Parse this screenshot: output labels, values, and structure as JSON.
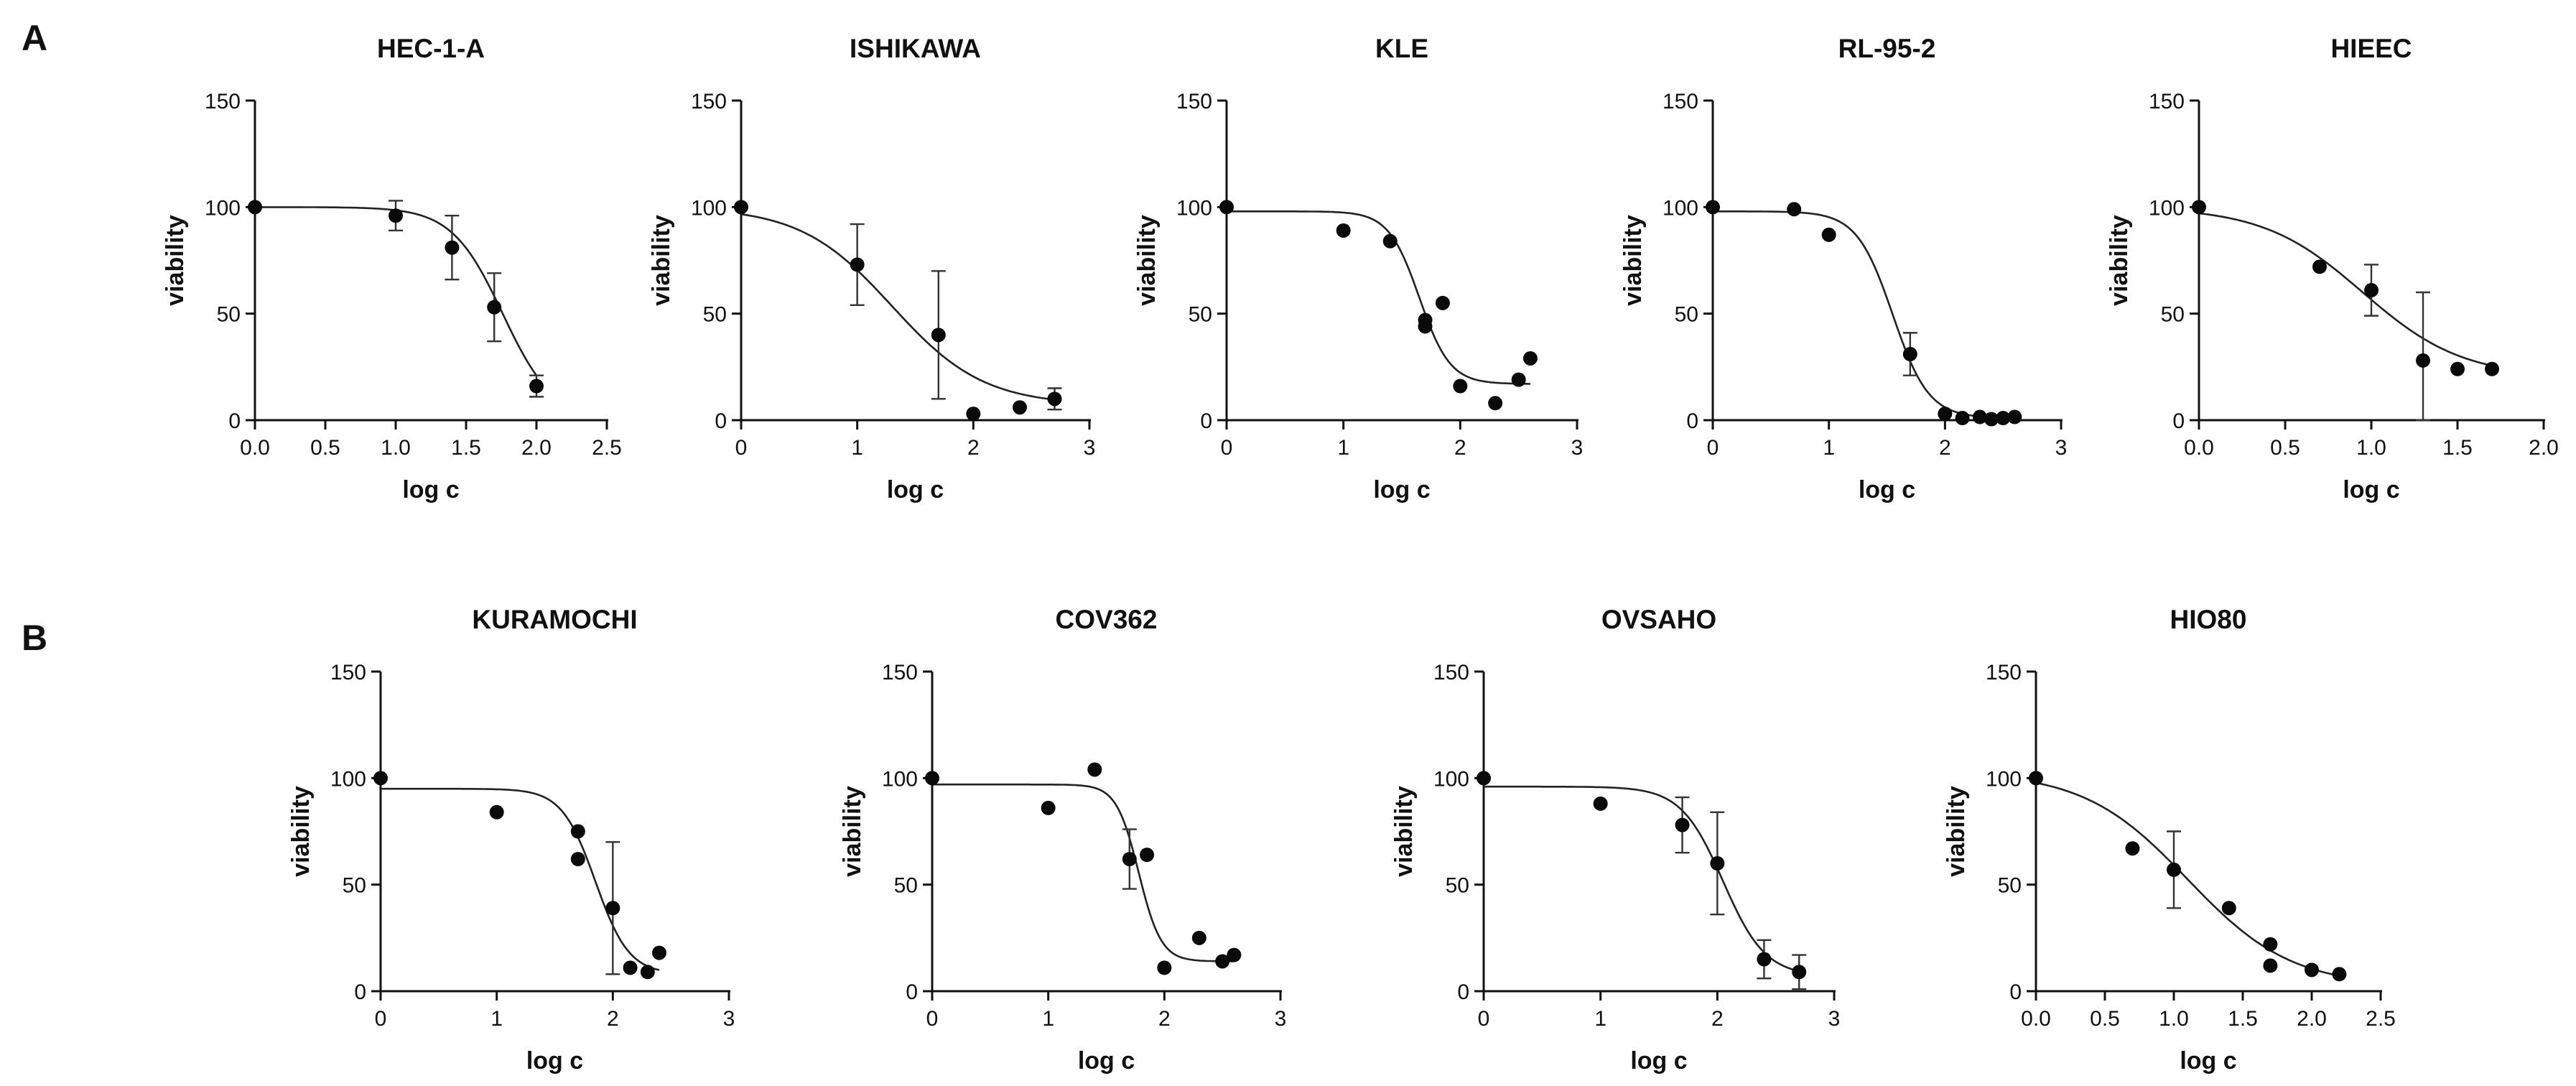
{
  "panel_labels": [
    "A",
    "B"
  ],
  "chart_data": [
    {
      "type": "scatter",
      "panel": "A",
      "title": "HEC-1-A",
      "xlabel": "log c",
      "ylabel": "viability",
      "xlim": [
        0,
        2.5
      ],
      "ylim": [
        0,
        150
      ],
      "xticks": [
        "0.0",
        "0.5",
        "1.0",
        "1.5",
        "2.0",
        "2.5"
      ],
      "yticks": [
        "0",
        "50",
        "100",
        "150"
      ],
      "points": [
        {
          "x": 0.0,
          "y": 100
        },
        {
          "x": 1.0,
          "y": 96,
          "err": 7
        },
        {
          "x": 1.4,
          "y": 81,
          "err": 15
        },
        {
          "x": 1.7,
          "y": 53,
          "err": 16
        },
        {
          "x": 2.0,
          "y": 16,
          "err": 5
        }
      ],
      "fit": {
        "top": 100,
        "bottom": 0,
        "logIC50": 1.76,
        "hill": 2.4,
        "xmin": 0,
        "xmax": 2.0
      }
    },
    {
      "type": "scatter",
      "panel": "A",
      "title": "ISHIKAWA",
      "xlabel": "log c",
      "ylabel": "viability",
      "xlim": [
        0,
        3
      ],
      "ylim": [
        0,
        150
      ],
      "xticks": [
        "0",
        "1",
        "2",
        "3"
      ],
      "yticks": [
        "0",
        "50",
        "100",
        "150"
      ],
      "points": [
        {
          "x": 0.0,
          "y": 100
        },
        {
          "x": 1.0,
          "y": 73,
          "err": 19
        },
        {
          "x": 1.7,
          "y": 40,
          "err": 30
        },
        {
          "x": 2.0,
          "y": 3
        },
        {
          "x": 2.4,
          "y": 6
        },
        {
          "x": 2.7,
          "y": 10,
          "err": 5
        }
      ],
      "fit": {
        "top": 100,
        "bottom": 7,
        "logIC50": 1.3,
        "hill": 1.1,
        "xmin": 0,
        "xmax": 2.7
      }
    },
    {
      "type": "scatter",
      "panel": "A",
      "title": "KLE",
      "xlabel": "log c",
      "ylabel": "viability",
      "xlim": [
        0,
        3
      ],
      "ylim": [
        0,
        150
      ],
      "xticks": [
        "0",
        "1",
        "2",
        "3"
      ],
      "yticks": [
        "0",
        "50",
        "100",
        "150"
      ],
      "points": [
        {
          "x": 0.0,
          "y": 100
        },
        {
          "x": 1.0,
          "y": 89
        },
        {
          "x": 1.4,
          "y": 84
        },
        {
          "x": 1.7,
          "y": 47
        },
        {
          "x": 1.7,
          "y": 44
        },
        {
          "x": 1.85,
          "y": 55
        },
        {
          "x": 2.0,
          "y": 16
        },
        {
          "x": 2.3,
          "y": 8
        },
        {
          "x": 2.5,
          "y": 19
        },
        {
          "x": 2.6,
          "y": 29
        }
      ],
      "fit": {
        "top": 98,
        "bottom": 17,
        "logIC50": 1.65,
        "hill": 3.3,
        "xmin": 0,
        "xmax": 2.6
      }
    },
    {
      "type": "scatter",
      "panel": "A",
      "title": "RL-95-2",
      "xlabel": "log c",
      "ylabel": "viability",
      "xlim": [
        0,
        3
      ],
      "ylim": [
        0,
        150
      ],
      "xticks": [
        "0",
        "1",
        "2",
        "3"
      ],
      "yticks": [
        "0",
        "50",
        "100",
        "150"
      ],
      "points": [
        {
          "x": 0.0,
          "y": 100
        },
        {
          "x": 0.7,
          "y": 99
        },
        {
          "x": 1.0,
          "y": 87
        },
        {
          "x": 1.7,
          "y": 31,
          "err": 10
        },
        {
          "x": 2.0,
          "y": 3
        },
        {
          "x": 2.15,
          "y": 1
        },
        {
          "x": 2.3,
          "y": 1.5
        },
        {
          "x": 2.4,
          "y": 0.5
        },
        {
          "x": 2.5,
          "y": 1
        },
        {
          "x": 2.6,
          "y": 1.5
        }
      ],
      "fit": {
        "top": 98,
        "bottom": 1,
        "logIC50": 1.55,
        "hill": 2.8,
        "xmin": 0,
        "xmax": 2.6
      }
    },
    {
      "type": "scatter",
      "panel": "A",
      "title": "HIEEC",
      "xlabel": "log c",
      "ylabel": "viability",
      "xlim": [
        0,
        2.0
      ],
      "ylim": [
        0,
        150
      ],
      "xticks": [
        "0.0",
        "0.5",
        "1.0",
        "1.5",
        "2.0"
      ],
      "yticks": [
        "0",
        "50",
        "100",
        "150"
      ],
      "points": [
        {
          "x": 0.0,
          "y": 100
        },
        {
          "x": 0.7,
          "y": 72
        },
        {
          "x": 1.0,
          "y": 61,
          "err": 12
        },
        {
          "x": 1.3,
          "y": 28,
          "err": 32
        },
        {
          "x": 1.5,
          "y": 24
        },
        {
          "x": 1.7,
          "y": 24
        }
      ],
      "fit": {
        "top": 100,
        "bottom": 20,
        "logIC50": 0.95,
        "hill": 1.5,
        "xmin": 0,
        "xmax": 1.7
      }
    },
    {
      "type": "scatter",
      "panel": "B",
      "title": "KURAMOCHI",
      "xlabel": "log c",
      "ylabel": "viability",
      "xlim": [
        0,
        3
      ],
      "ylim": [
        0,
        150
      ],
      "xticks": [
        "0",
        "1",
        "2",
        "3"
      ],
      "yticks": [
        "0",
        "50",
        "100",
        "150"
      ],
      "points": [
        {
          "x": 0.0,
          "y": 100
        },
        {
          "x": 1.0,
          "y": 84
        },
        {
          "x": 1.7,
          "y": 75
        },
        {
          "x": 1.7,
          "y": 62
        },
        {
          "x": 2.0,
          "y": 39,
          "err": 31
        },
        {
          "x": 2.15,
          "y": 11
        },
        {
          "x": 2.3,
          "y": 9
        },
        {
          "x": 2.4,
          "y": 18
        }
      ],
      "fit": {
        "top": 95,
        "bottom": 8,
        "logIC50": 1.85,
        "hill": 3.0,
        "xmin": 0,
        "xmax": 2.4
      }
    },
    {
      "type": "scatter",
      "panel": "B",
      "title": "COV362",
      "xlabel": "log c",
      "ylabel": "viability",
      "xlim": [
        0,
        3
      ],
      "ylim": [
        0,
        150
      ],
      "xticks": [
        "0",
        "1",
        "2",
        "3"
      ],
      "yticks": [
        "0",
        "50",
        "100",
        "150"
      ],
      "points": [
        {
          "x": 0.0,
          "y": 100
        },
        {
          "x": 1.0,
          "y": 86
        },
        {
          "x": 1.4,
          "y": 104
        },
        {
          "x": 1.7,
          "y": 62,
          "err": 14
        },
        {
          "x": 1.85,
          "y": 64
        },
        {
          "x": 2.0,
          "y": 11
        },
        {
          "x": 2.3,
          "y": 25
        },
        {
          "x": 2.5,
          "y": 14
        },
        {
          "x": 2.6,
          "y": 17
        }
      ],
      "fit": {
        "top": 97,
        "bottom": 14,
        "logIC50": 1.78,
        "hill": 4.5,
        "xmin": 0,
        "xmax": 2.6
      }
    },
    {
      "type": "scatter",
      "panel": "B",
      "title": "OVSAHO",
      "xlabel": "log c",
      "ylabel": "viability",
      "xlim": [
        0,
        3
      ],
      "ylim": [
        0,
        150
      ],
      "xticks": [
        "0",
        "1",
        "2",
        "3"
      ],
      "yticks": [
        "0",
        "50",
        "100",
        "150"
      ],
      "points": [
        {
          "x": 0.0,
          "y": 100
        },
        {
          "x": 1.0,
          "y": 88
        },
        {
          "x": 1.7,
          "y": 78,
          "err": 13
        },
        {
          "x": 2.0,
          "y": 60,
          "err": 24
        },
        {
          "x": 2.4,
          "y": 15,
          "err": 9
        },
        {
          "x": 2.7,
          "y": 9,
          "err": 8
        }
      ],
      "fit": {
        "top": 96,
        "bottom": 7,
        "logIC50": 2.05,
        "hill": 2.4,
        "xmin": 0,
        "xmax": 2.7
      }
    },
    {
      "type": "scatter",
      "panel": "B",
      "title": "HIO80",
      "xlabel": "log c",
      "ylabel": "viability",
      "xlim": [
        0,
        2.5
      ],
      "ylim": [
        0,
        150
      ],
      "xticks": [
        "0.0",
        "0.5",
        "1.0",
        "1.5",
        "2.0",
        "2.5"
      ],
      "yticks": [
        "0",
        "50",
        "100",
        "150"
      ],
      "points": [
        {
          "x": 0.0,
          "y": 100
        },
        {
          "x": 0.7,
          "y": 67
        },
        {
          "x": 1.0,
          "y": 57,
          "err": 18
        },
        {
          "x": 1.4,
          "y": 39
        },
        {
          "x": 1.7,
          "y": 22
        },
        {
          "x": 1.7,
          "y": 12
        },
        {
          "x": 2.0,
          "y": 10
        },
        {
          "x": 2.2,
          "y": 8
        }
      ],
      "fit": {
        "top": 103,
        "bottom": 2,
        "logIC50": 1.1,
        "hill": 1.15,
        "xmin": 0,
        "xmax": 2.2
      }
    }
  ]
}
